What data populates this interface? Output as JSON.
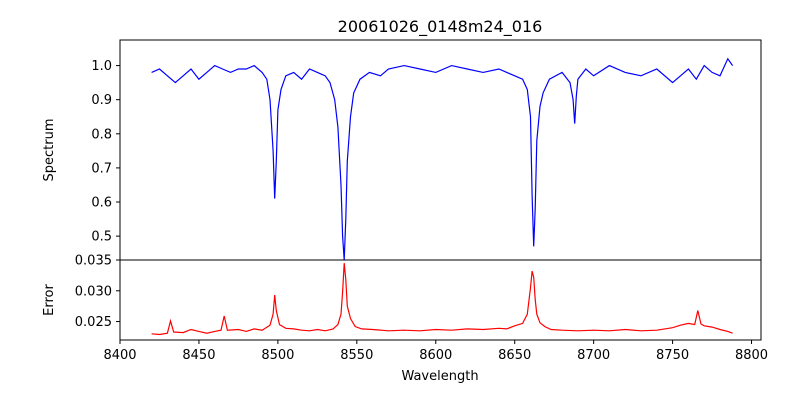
{
  "chart_data": [
    {
      "type": "line",
      "panel": "top",
      "title": "20061026_0148m24_016",
      "xlabel": "",
      "ylabel": "Spectrum",
      "xlim": [
        8400,
        8806
      ],
      "ylim": [
        0.43,
        1.075
      ],
      "yticks": [
        0.5,
        0.6,
        0.7,
        0.8,
        0.9,
        1.0
      ],
      "ytick_labels": [
        "0.5",
        "0.6",
        "0.7",
        "0.8",
        "0.9",
        "1.0"
      ],
      "grid": false,
      "color": "#0000ff",
      "series": [
        {
          "x": [
            8420,
            8425,
            8430,
            8435,
            8440,
            8445,
            8450,
            8455,
            8460,
            8465,
            8470,
            8475,
            8480,
            8485,
            8490,
            8493,
            8495,
            8497,
            8498,
            8499,
            8500,
            8502,
            8505,
            8510,
            8515,
            8520,
            8525,
            8530,
            8533,
            8536,
            8538,
            8540,
            8541,
            8542,
            8543,
            8544,
            8546,
            8548,
            8552,
            8558,
            8565,
            8570,
            8580,
            8590,
            8600,
            8610,
            8620,
            8630,
            8640,
            8645,
            8650,
            8655,
            8658,
            8660,
            8661,
            8662,
            8663,
            8664,
            8666,
            8668,
            8672,
            8680,
            8685,
            8687,
            8688,
            8689,
            8690,
            8695,
            8700,
            8710,
            8720,
            8730,
            8740,
            8750,
            8755,
            8760,
            8765,
            8770,
            8775,
            8780,
            8785,
            8788
          ],
          "y": [
            0.98,
            0.99,
            0.97,
            0.95,
            0.97,
            0.99,
            0.96,
            0.98,
            1.0,
            0.99,
            0.98,
            0.99,
            0.99,
            1.0,
            0.98,
            0.96,
            0.9,
            0.75,
            0.61,
            0.72,
            0.87,
            0.93,
            0.97,
            0.98,
            0.96,
            0.99,
            0.98,
            0.97,
            0.95,
            0.9,
            0.82,
            0.65,
            0.5,
            0.43,
            0.55,
            0.72,
            0.85,
            0.92,
            0.96,
            0.98,
            0.97,
            0.99,
            1.0,
            0.99,
            0.98,
            1.0,
            0.99,
            0.98,
            0.99,
            0.98,
            0.97,
            0.96,
            0.93,
            0.85,
            0.62,
            0.47,
            0.58,
            0.78,
            0.88,
            0.92,
            0.96,
            0.98,
            0.95,
            0.9,
            0.83,
            0.91,
            0.96,
            0.99,
            0.97,
            1.0,
            0.98,
            0.97,
            0.99,
            0.95,
            0.97,
            0.99,
            0.96,
            1.0,
            0.98,
            0.97,
            1.02,
            1.0
          ]
        }
      ]
    },
    {
      "type": "line",
      "panel": "bottom",
      "title": "",
      "xlabel": "Wavelength",
      "ylabel": "Error",
      "xlim": [
        8400,
        8806
      ],
      "ylim": [
        0.022,
        0.035
      ],
      "xticks": [
        8400,
        8450,
        8500,
        8550,
        8600,
        8650,
        8700,
        8750,
        8800
      ],
      "xtick_labels": [
        "8400",
        "8450",
        "8500",
        "8550",
        "8600",
        "8650",
        "8700",
        "8750",
        "8800"
      ],
      "yticks": [
        0.025,
        0.03,
        0.035
      ],
      "ytick_labels": [
        "0.025",
        "0.030",
        "0.035"
      ],
      "grid": false,
      "color": "#ff0000",
      "series": [
        {
          "x": [
            8420,
            8425,
            8430,
            8432,
            8434,
            8440,
            8445,
            8450,
            8455,
            8460,
            8464,
            8466,
            8468,
            8475,
            8480,
            8485,
            8490,
            8495,
            8497,
            8498,
            8499,
            8501,
            8505,
            8510,
            8515,
            8520,
            8525,
            8530,
            8535,
            8538,
            8540,
            8541,
            8542,
            8543,
            8544,
            8546,
            8549,
            8553,
            8560,
            8570,
            8580,
            8590,
            8600,
            8610,
            8620,
            8630,
            8640,
            8645,
            8650,
            8655,
            8658,
            8660,
            8661,
            8662,
            8663,
            8664,
            8666,
            8669,
            8673,
            8680,
            8690,
            8700,
            8710,
            8720,
            8730,
            8740,
            8750,
            8755,
            8760,
            8764,
            8766,
            8768,
            8770,
            8775,
            8780,
            8785,
            8788
          ],
          "y": [
            0.023,
            0.0229,
            0.0231,
            0.0251,
            0.0233,
            0.0232,
            0.0237,
            0.0234,
            0.0231,
            0.0234,
            0.0236,
            0.0259,
            0.0236,
            0.0237,
            0.0234,
            0.0238,
            0.0236,
            0.0244,
            0.0262,
            0.0293,
            0.0268,
            0.0245,
            0.0239,
            0.0238,
            0.0236,
            0.0235,
            0.0237,
            0.0235,
            0.0238,
            0.0245,
            0.0262,
            0.0298,
            0.0345,
            0.0318,
            0.0275,
            0.0255,
            0.0242,
            0.0238,
            0.0237,
            0.0235,
            0.0236,
            0.0235,
            0.0237,
            0.0236,
            0.0238,
            0.0237,
            0.0239,
            0.0238,
            0.0243,
            0.0247,
            0.0262,
            0.0305,
            0.0332,
            0.0322,
            0.0286,
            0.0262,
            0.0248,
            0.0242,
            0.0237,
            0.0236,
            0.0235,
            0.0236,
            0.0235,
            0.0237,
            0.0235,
            0.0236,
            0.024,
            0.0244,
            0.0247,
            0.0245,
            0.0268,
            0.0246,
            0.0243,
            0.0241,
            0.0237,
            0.0234,
            0.0231
          ]
        }
      ]
    }
  ]
}
